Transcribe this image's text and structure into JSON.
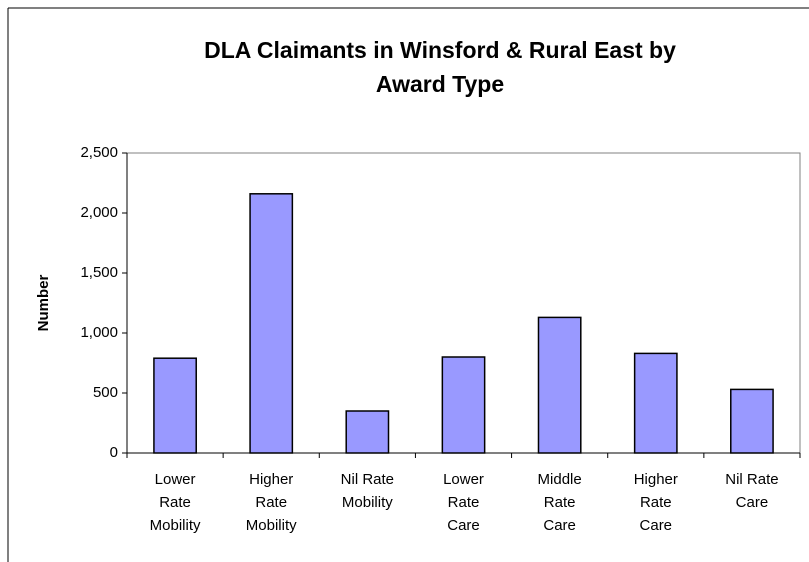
{
  "chart_data": {
    "type": "bar",
    "title": [
      "DLA Claimants in Winsford & Rural East by",
      "Award Type"
    ],
    "ylabel": "Number",
    "categories": [
      [
        "Lower",
        "Rate",
        "Mobility"
      ],
      [
        "Higher",
        "Rate",
        "Mobility"
      ],
      [
        "Nil Rate",
        "Mobility"
      ],
      [
        "Lower",
        "Rate",
        "Care"
      ],
      [
        "Middle",
        "Rate",
        "Care"
      ],
      [
        "Higher",
        "Rate",
        "Care"
      ],
      [
        "Nil Rate",
        "Care"
      ]
    ],
    "values": [
      790,
      2160,
      350,
      800,
      1130,
      830,
      530
    ],
    "color": "#9999ff",
    "ylim": [
      0,
      2500
    ],
    "yticks": [
      0,
      500,
      {
        "value": 1000,
        "label": "1,000"
      },
      {
        "value": 1500,
        "label": "1,500"
      },
      {
        "value": 2000,
        "label": "2,000"
      },
      {
        "value": 2500,
        "label": "2,500"
      }
    ],
    "grid": false
  }
}
